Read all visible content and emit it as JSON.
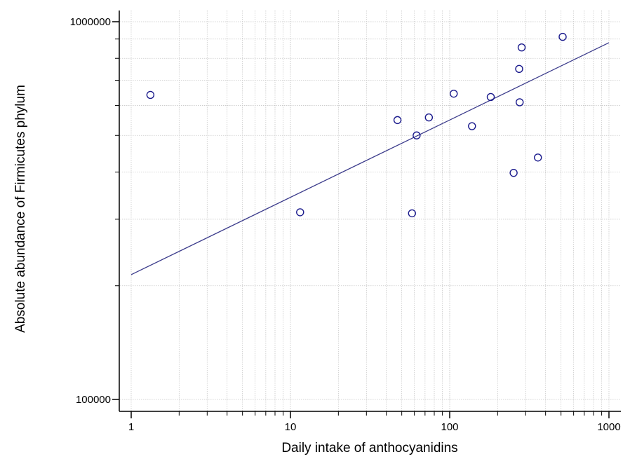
{
  "chart_data": {
    "type": "scatter",
    "title": "",
    "xlabel": "Daily intake of anthocyanidins",
    "ylabel": "Absolute abundance of Firmicutes phylum",
    "x_scale": "log",
    "y_scale": "log",
    "xlim": [
      1,
      1000
    ],
    "ylim": [
      100000,
      1000000
    ],
    "x_ticks": [
      {
        "value": 1,
        "label": "1"
      },
      {
        "value": 10,
        "label": "10"
      },
      {
        "value": 100,
        "label": "100"
      },
      {
        "value": 1000,
        "label": "1000"
      }
    ],
    "y_ticks": [
      {
        "value": 100000,
        "label": "100000"
      },
      {
        "value": 1000000,
        "label": "1000000"
      }
    ],
    "grid": true,
    "marker": "open-circle",
    "point_color": "#1a1a8c",
    "line_color": "#3c3c8c",
    "points": [
      {
        "x": 1.32,
        "y": 640000
      },
      {
        "x": 11.5,
        "y": 313000
      },
      {
        "x": 47,
        "y": 549000
      },
      {
        "x": 58,
        "y": 311000
      },
      {
        "x": 62,
        "y": 500000
      },
      {
        "x": 74,
        "y": 558000
      },
      {
        "x": 106,
        "y": 645000
      },
      {
        "x": 138,
        "y": 529000
      },
      {
        "x": 181,
        "y": 632000
      },
      {
        "x": 252,
        "y": 398000
      },
      {
        "x": 273,
        "y": 750000
      },
      {
        "x": 275,
        "y": 612000
      },
      {
        "x": 283,
        "y": 855000
      },
      {
        "x": 358,
        "y": 437000
      },
      {
        "x": 512,
        "y": 912000
      }
    ],
    "regression_line": [
      {
        "x": 1,
        "y": 214000
      },
      {
        "x": 1000,
        "y": 880000
      }
    ]
  }
}
